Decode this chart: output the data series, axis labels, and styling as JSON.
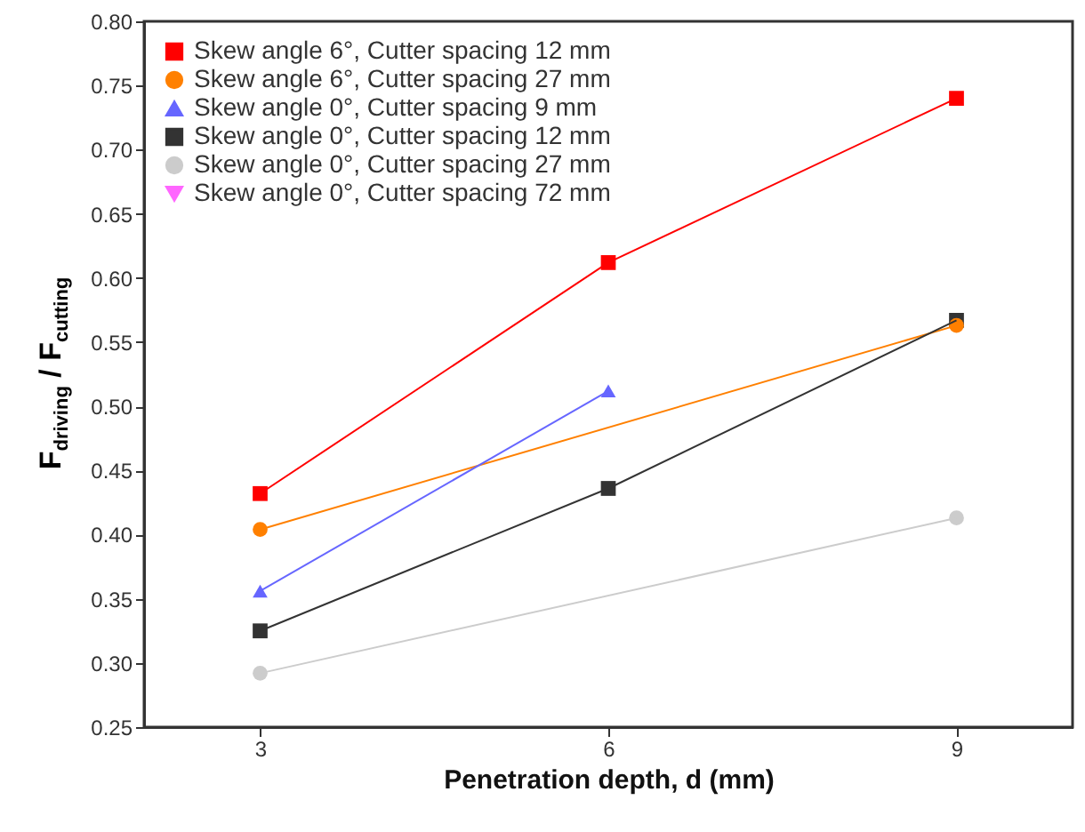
{
  "chart_data": {
    "type": "line",
    "xlabel": "Penetration depth, d (mm)",
    "ylabel": "F$_{driving}$ / F$_{cutting}$",
    "xlim": [
      2,
      10
    ],
    "xticks": [
      3,
      6,
      9
    ],
    "ylim": [
      0.25,
      0.8
    ],
    "yticks": [
      {
        "value": 0.25,
        "label": "0.25"
      },
      {
        "value": 0.3,
        "label": "0.30"
      },
      {
        "value": 0.35,
        "label": "0.35"
      },
      {
        "value": 0.4,
        "label": "0.40"
      },
      {
        "value": 0.45,
        "label": "0.45"
      },
      {
        "value": 0.5,
        "label": "0.50"
      },
      {
        "value": 0.55,
        "label": "0.55"
      },
      {
        "value": 0.6,
        "label": "0.60"
      },
      {
        "value": 0.65,
        "label": "0.65"
      },
      {
        "value": 0.7,
        "label": "0.70"
      },
      {
        "value": 0.75,
        "label": "0.75"
      },
      {
        "value": 0.8,
        "label": "0.80"
      }
    ],
    "grid": false,
    "legend": "top left",
    "line_style": "solid",
    "series": [
      {
        "name": "Skew angle 6°, Cutter spacing 12 mm",
        "color": "#ff0000",
        "marker": "square",
        "x": [
          3,
          6,
          9
        ],
        "values": [
          0.432,
          0.612,
          0.74
        ]
      },
      {
        "name": "Skew angle 6°, Cutter spacing 27 mm",
        "color": "#ff8000",
        "marker": "circle",
        "x": [
          3,
          9
        ],
        "values": [
          0.404,
          0.563
        ]
      },
      {
        "name": "Skew angle 0°, Cutter spacing 9 mm",
        "color": "#6666ff",
        "marker": "triangle",
        "x": [
          3,
          6
        ],
        "values": [
          0.356,
          0.512
        ]
      },
      {
        "name": "Skew angle 0°, Cutter spacing 12 mm",
        "color": "#333333",
        "marker": "square",
        "x": [
          3,
          6,
          9
        ],
        "values": [
          0.325,
          0.436,
          0.567
        ]
      },
      {
        "name": "Skew angle 0°, Cutter spacing 27 mm",
        "color": "#cccccc",
        "marker": "circle",
        "x": [
          3,
          9
        ],
        "values": [
          0.292,
          0.413
        ]
      },
      {
        "name": "Skew angle 0°, Cutter spacing 72 mm",
        "color": "#ff66ff",
        "marker": "triangle-down"
      }
    ]
  }
}
